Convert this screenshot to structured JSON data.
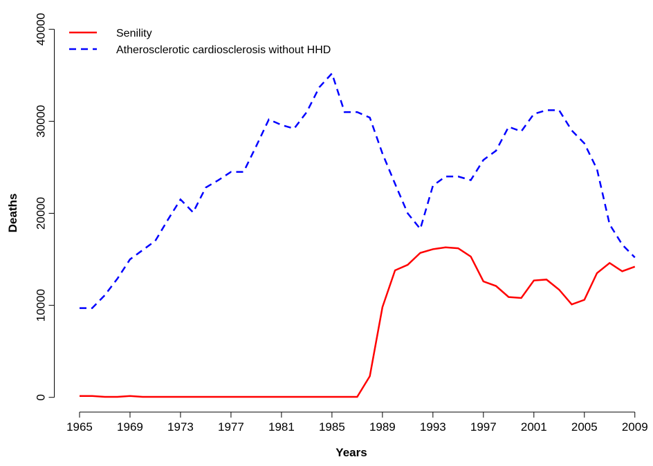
{
  "chart_data": {
    "type": "line",
    "x_label": "Years",
    "y_label": "Deaths",
    "x": [
      1965,
      1966,
      1967,
      1968,
      1969,
      1970,
      1971,
      1972,
      1973,
      1974,
      1975,
      1976,
      1977,
      1978,
      1979,
      1980,
      1981,
      1982,
      1983,
      1984,
      1985,
      1986,
      1987,
      1988,
      1989,
      1990,
      1991,
      1992,
      1993,
      1994,
      1995,
      1996,
      1997,
      1998,
      1999,
      2000,
      2001,
      2002,
      2003,
      2004,
      2005,
      2006,
      2007,
      2008,
      2009
    ],
    "series": [
      {
        "name": "Senility",
        "color": "#ff0000",
        "dash": "solid",
        "values": [
          150,
          150,
          50,
          50,
          150,
          50,
          50,
          50,
          50,
          50,
          50,
          50,
          50,
          50,
          50,
          50,
          50,
          50,
          50,
          50,
          50,
          50,
          50,
          2300,
          9800,
          13800,
          14400,
          15700,
          16100,
          16300,
          16200,
          15300,
          12600,
          12100,
          10900,
          10800,
          12700,
          12800,
          11700,
          10100,
          10600,
          13500,
          14600,
          13700,
          14200
        ]
      },
      {
        "name": "Atherosclerotic cardiosclerosis without HHD",
        "color": "#0000ff",
        "dash": "dashed",
        "values": [
          9700,
          9700,
          11100,
          12900,
          15000,
          16000,
          17000,
          19300,
          21500,
          20100,
          22800,
          23600,
          24500,
          24500,
          27300,
          30200,
          29600,
          29200,
          31000,
          33700,
          35200,
          31000,
          31000,
          30400,
          26500,
          23200,
          20000,
          18300,
          23000,
          24000,
          24000,
          23600,
          25800,
          26800,
          29400,
          28900,
          30800,
          31200,
          31200,
          29000,
          27600,
          24800,
          18800,
          16600,
          15200
        ]
      }
    ],
    "xlim": [
      1963,
      2010
    ],
    "ylim": [
      -1600,
      41000
    ],
    "xticks": [
      1965,
      1969,
      1973,
      1977,
      1981,
      1985,
      1989,
      1993,
      1997,
      2001,
      2005,
      2009
    ],
    "yticks": [
      0,
      10000,
      20000,
      30000,
      40000
    ],
    "legend": "top-left"
  }
}
